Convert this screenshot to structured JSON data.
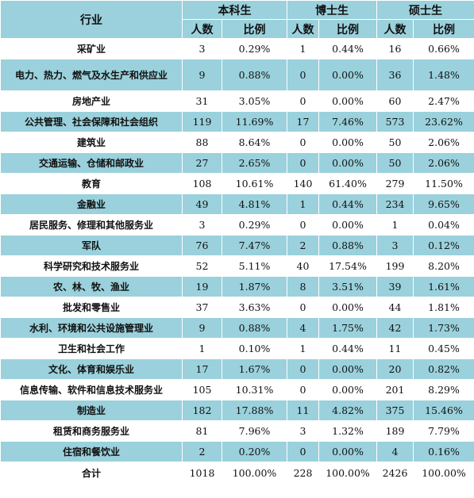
{
  "header": {
    "industry": "行业",
    "groups": [
      "本科生",
      "博士生",
      "硕士生"
    ],
    "sub_count": "人数",
    "sub_ratio": "比例"
  },
  "rows": [
    {
      "name": "采矿业",
      "b": [
        "3",
        "0.29%"
      ],
      "d": [
        "1",
        "0.44%"
      ],
      "m": [
        "16",
        "0.66%"
      ]
    },
    {
      "name": "电力、热力、燃气及水生产和供应业",
      "b": [
        "9",
        "0.88%"
      ],
      "d": [
        "0",
        "0.00%"
      ],
      "m": [
        "36",
        "1.48%"
      ]
    },
    {
      "name": "房地产业",
      "b": [
        "31",
        "3.05%"
      ],
      "d": [
        "0",
        "0.00%"
      ],
      "m": [
        "60",
        "2.47%"
      ]
    },
    {
      "name": "公共管理、社会保障和社会组织",
      "b": [
        "119",
        "11.69%"
      ],
      "d": [
        "17",
        "7.46%"
      ],
      "m": [
        "573",
        "23.62%"
      ]
    },
    {
      "name": "建筑业",
      "b": [
        "88",
        "8.64%"
      ],
      "d": [
        "0",
        "0.00%"
      ],
      "m": [
        "50",
        "2.06%"
      ]
    },
    {
      "name": "交通运输、仓储和邮政业",
      "b": [
        "27",
        "2.65%"
      ],
      "d": [
        "0",
        "0.00%"
      ],
      "m": [
        "50",
        "2.06%"
      ]
    },
    {
      "name": "教育",
      "b": [
        "108",
        "10.61%"
      ],
      "d": [
        "140",
        "61.40%"
      ],
      "m": [
        "279",
        "11.50%"
      ]
    },
    {
      "name": "金融业",
      "b": [
        "49",
        "4.81%"
      ],
      "d": [
        "1",
        "0.44%"
      ],
      "m": [
        "234",
        "9.65%"
      ]
    },
    {
      "name": "居民服务、修理和其他服务业",
      "b": [
        "3",
        "0.29%"
      ],
      "d": [
        "0",
        "0.00%"
      ],
      "m": [
        "1",
        "0.04%"
      ]
    },
    {
      "name": "军队",
      "b": [
        "76",
        "7.47%"
      ],
      "d": [
        "2",
        "0.88%"
      ],
      "m": [
        "3",
        "0.12%"
      ]
    },
    {
      "name": "科学研究和技术服务业",
      "b": [
        "52",
        "5.11%"
      ],
      "d": [
        "40",
        "17.54%"
      ],
      "m": [
        "199",
        "8.20%"
      ]
    },
    {
      "name": "农、林、牧、渔业",
      "b": [
        "19",
        "1.87%"
      ],
      "d": [
        "8",
        "3.51%"
      ],
      "m": [
        "39",
        "1.61%"
      ]
    },
    {
      "name": "批发和零售业",
      "b": [
        "37",
        "3.63%"
      ],
      "d": [
        "0",
        "0.00%"
      ],
      "m": [
        "44",
        "1.81%"
      ]
    },
    {
      "name": "水利、环境和公共设施管理业",
      "b": [
        "9",
        "0.88%"
      ],
      "d": [
        "4",
        "1.75%"
      ],
      "m": [
        "42",
        "1.73%"
      ]
    },
    {
      "name": "卫生和社会工作",
      "b": [
        "1",
        "0.10%"
      ],
      "d": [
        "1",
        "0.44%"
      ],
      "m": [
        "11",
        "0.45%"
      ]
    },
    {
      "name": "文化、体育和娱乐业",
      "b": [
        "17",
        "1.67%"
      ],
      "d": [
        "0",
        "0.00%"
      ],
      "m": [
        "20",
        "0.82%"
      ]
    },
    {
      "name": "信息传输、软件和信息技术服务业",
      "b": [
        "105",
        "10.31%"
      ],
      "d": [
        "0",
        "0.00%"
      ],
      "m": [
        "201",
        "8.29%"
      ]
    },
    {
      "name": "制造业",
      "b": [
        "182",
        "17.88%"
      ],
      "d": [
        "11",
        "4.82%"
      ],
      "m": [
        "375",
        "15.46%"
      ]
    },
    {
      "name": "租赁和商务服务业",
      "b": [
        "81",
        "7.96%"
      ],
      "d": [
        "3",
        "1.32%"
      ],
      "m": [
        "189",
        "7.79%"
      ]
    },
    {
      "name": "住宿和餐饮业",
      "b": [
        "2",
        "0.20%"
      ],
      "d": [
        "0",
        "0.00%"
      ],
      "m": [
        "4",
        "0.16%"
      ]
    }
  ],
  "total": {
    "name": "合计",
    "b": [
      "1018",
      "100.00%"
    ],
    "d": [
      "228",
      "100.00%"
    ],
    "m": [
      "2426",
      "100.00%"
    ]
  }
}
